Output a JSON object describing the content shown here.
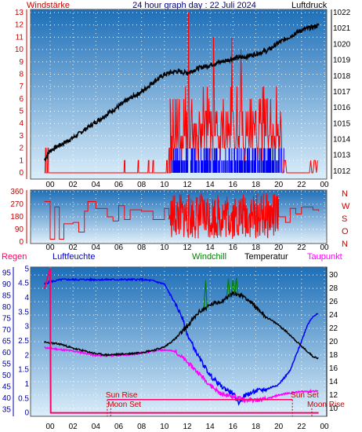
{
  "header": {
    "title": "24 hour graph day : 22 Juli 2024",
    "left_label": "Windstärke",
    "right_label": "Luftdruck"
  },
  "colors": {
    "wind_avg": "#ff0000",
    "wind_dir": "#ff0000",
    "gust": "#0000ff",
    "pressure": "#000000",
    "humidity": "#0000ff",
    "temperature": "#000000",
    "windchill": "#008000",
    "dewpoint": "#ff00ff",
    "rain": "#ff0066",
    "sun_moon": "#cc0000",
    "axis_left": "#cc0000",
    "axis_blue": "#0000aa",
    "plot_top": "#1e6fb8",
    "plot_bottom": "#dbeefa"
  },
  "dir_labels": [
    "N",
    "W",
    "S",
    "O",
    "N"
  ],
  "legend3": {
    "rain": "Regen",
    "humidity": "Luftfeuchte",
    "windchill": "Windchill",
    "temperature": "Temperatur",
    "dewpoint": "Taupunkt"
  },
  "annotations": {
    "sun_rise": "Sun Rise",
    "sun_set": "Sun Set",
    "moon_set": "Moon Set",
    "moon_rise": "Moon Rise"
  },
  "chart_data": [
    {
      "type": "line",
      "id": "wind_pressure",
      "x_ticks": [
        "00",
        "02",
        "04",
        "06",
        "08",
        "10",
        "12",
        "14",
        "16",
        "18",
        "20",
        "22",
        "00"
      ],
      "y_left": [
        0,
        1,
        2,
        3,
        4,
        5,
        6,
        7,
        8,
        9,
        10,
        11,
        12,
        13
      ],
      "y_right": [
        1012,
        1013,
        1014,
        1015,
        1016,
        1017,
        1018,
        1019,
        1020,
        1021,
        1022
      ],
      "ylim_left": [
        0,
        13
      ],
      "ylim_right": [
        1011.5,
        1022.2
      ],
      "pressure": {
        "x": [
          -0.5,
          0,
          1,
          2,
          3,
          4,
          5,
          6,
          7,
          8,
          9,
          10,
          11,
          12,
          13,
          14,
          15,
          16,
          17,
          18,
          19,
          20,
          21,
          22,
          23,
          23.5
        ],
        "y": [
          1012.7,
          1013.3,
          1013.7,
          1014.1,
          1014.6,
          1015.1,
          1015.6,
          1016.1,
          1016.6,
          1017.0,
          1017.6,
          1018.1,
          1018.3,
          1018.2,
          1018.5,
          1018.7,
          1018.9,
          1019.1,
          1019.2,
          1019.4,
          1019.6,
          1020.1,
          1020.5,
          1020.9,
          1021.1,
          1021.2
        ]
      },
      "wind_avg_zero_until": 10.5,
      "gust_start": 10.5,
      "gust_end": 20.5
    },
    {
      "type": "line",
      "id": "wind_direction",
      "x_ticks": [
        "00",
        "02",
        "04",
        "06",
        "08",
        "10",
        "12",
        "14",
        "16",
        "18",
        "20",
        "22",
        "00"
      ],
      "y": [
        0,
        90,
        180,
        270,
        360
      ],
      "ylim": [
        0,
        360
      ],
      "direction": {
        "x": [
          -0.5,
          0.0,
          0.4,
          0.8,
          1.2,
          2.0,
          2.5,
          3.0,
          3.3,
          4.0,
          5.0,
          5.5,
          6.0,
          6.5,
          7.0,
          8.0,
          9.0,
          10.0,
          10.4
        ],
        "y": [
          290,
          20,
          250,
          20,
          130,
          140,
          70,
          220,
          290,
          240,
          180,
          150,
          260,
          160,
          230,
          220,
          160,
          240,
          160
        ]
      },
      "after_20": {
        "x": [
          20.0,
          20.6,
          21.0,
          21.5,
          22.0,
          23.0,
          23.5
        ],
        "y": [
          180,
          140,
          240,
          200,
          250,
          230,
          220
        ]
      }
    },
    {
      "type": "line",
      "id": "temperature_humidity",
      "x_ticks": [
        "00",
        "02",
        "04",
        "06",
        "08",
        "10",
        "12",
        "14",
        "16",
        "18",
        "20",
        "22",
        "00"
      ],
      "y_left_rain": [
        0,
        0.5,
        1,
        1.5,
        2,
        2.5,
        3,
        3.5,
        4,
        4.5,
        5
      ],
      "y_left_humidity": [
        35,
        40,
        45,
        50,
        55,
        60,
        65,
        70,
        75,
        80,
        85,
        90,
        95
      ],
      "y_right": [
        10,
        12,
        14,
        16,
        18,
        20,
        22,
        24,
        26,
        28,
        30
      ],
      "ylim_right": [
        8.8,
        31.2
      ],
      "ylim_humidity": [
        32,
        97.5
      ],
      "temperature": {
        "x": [
          -0.5,
          0,
          1,
          2,
          3,
          4,
          5,
          6,
          7,
          8,
          9,
          10,
          11,
          12,
          13,
          14,
          15,
          16,
          17,
          18,
          19,
          20,
          21,
          22,
          23,
          23.5
        ],
        "y": [
          19.9,
          19.8,
          19.6,
          19.0,
          18.6,
          18.2,
          18.0,
          18.1,
          18.2,
          18.4,
          18.7,
          19.2,
          20.5,
          22.3,
          24.4,
          25.5,
          26.1,
          27.3,
          26.8,
          25.2,
          23.6,
          22.5,
          21.0,
          19.3,
          17.8,
          17.5
        ]
      },
      "dewpoint": {
        "x": [
          -0.5,
          0,
          1,
          2,
          3,
          4,
          5,
          6,
          7,
          8,
          9,
          10,
          11,
          12,
          13,
          14,
          15,
          16,
          17,
          18,
          19,
          20,
          21,
          22,
          23,
          23.5
        ],
        "y": [
          19.1,
          19.0,
          18.8,
          18.6,
          18.3,
          17.9,
          17.9,
          18.0,
          18.0,
          18.3,
          18.6,
          18.8,
          18.5,
          16.9,
          15.3,
          13.5,
          12.1,
          11.8,
          11.3,
          11.2,
          11.4,
          12.0,
          12.3,
          12.5,
          12.6,
          12.6
        ]
      },
      "humidity": {
        "x": [
          -0.5,
          0,
          1,
          2,
          3,
          4,
          5,
          6,
          7,
          8,
          9,
          10,
          11,
          11.5,
          12,
          13,
          14,
          15,
          16,
          16.5,
          17,
          18,
          19,
          20,
          21,
          22,
          22.5,
          23,
          23.5
        ],
        "y": [
          90,
          91,
          92,
          92,
          92,
          92,
          92,
          92,
          92,
          92,
          91.5,
          90,
          81,
          76,
          68,
          58,
          50,
          45,
          42,
          38,
          41,
          43,
          44,
          46,
          52,
          65,
          72,
          76,
          77
        ]
      },
      "windchill_peaks": {
        "x": [
          13.6,
          15.6,
          16.0,
          16.3
        ],
        "y": [
          29.2,
          29.5,
          29.3,
          29.6
        ]
      },
      "rain_total": {
        "x": [
          -0.5,
          0.0,
          0.05,
          23.5
        ],
        "y": [
          4.3,
          5.0,
          0.0,
          0.0
        ]
      },
      "events": [
        {
          "name": "sun_rise",
          "x": 5.0
        },
        {
          "name": "moon_set",
          "x": 5.3
        },
        {
          "name": "sun_set",
          "x": 21.2
        },
        {
          "name": "moon_rise",
          "x": 22.9
        }
      ]
    }
  ]
}
